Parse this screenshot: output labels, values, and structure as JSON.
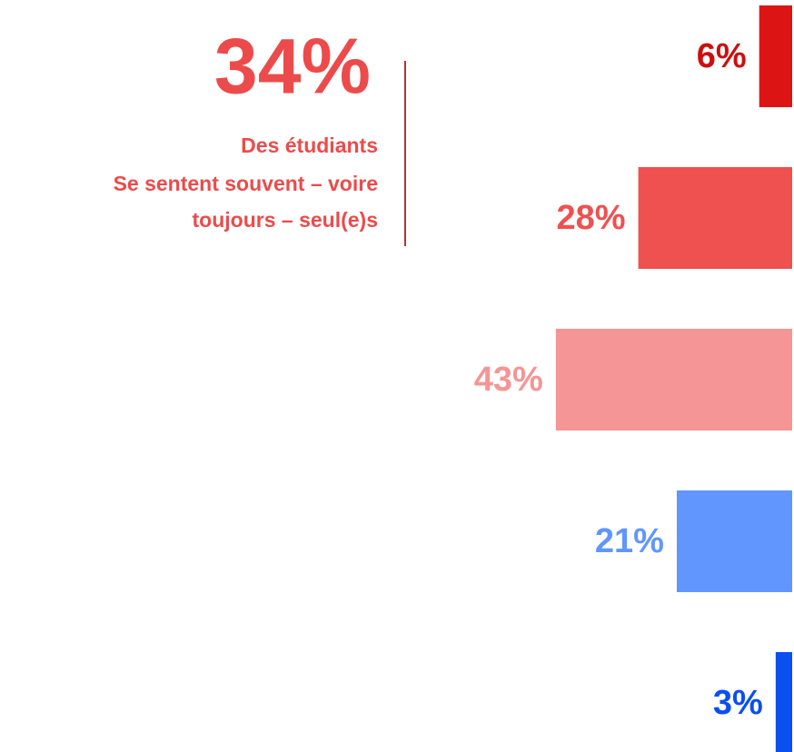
{
  "chart_data": {
    "type": "bar",
    "orientation": "horizontal",
    "title": "34%",
    "subtitle": [
      "Des étudiants",
      "Se sentent souvent – voire",
      "toujours – seul(e)s"
    ],
    "values": [
      6,
      28,
      43,
      21,
      3
    ],
    "value_labels": [
      "6%",
      "28%",
      "43%",
      "21%",
      "3%"
    ],
    "colors": [
      "#dd1414",
      "#ef5050",
      "#f59595",
      "#6196ff",
      "#0a4ff0"
    ]
  }
}
